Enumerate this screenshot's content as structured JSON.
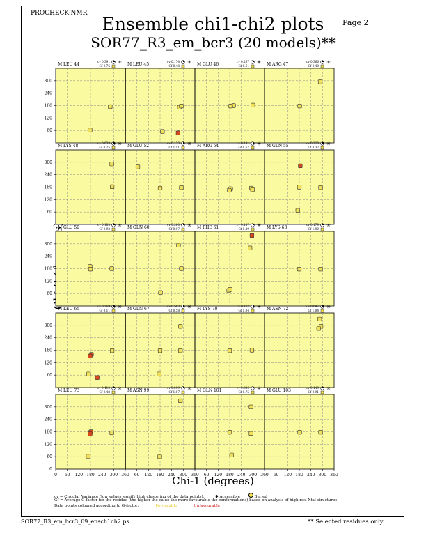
{
  "header_tag": "PROCHECK-NMR",
  "page_label": "Page  2",
  "title": "Ensemble chi1-chi2 plots",
  "subtitle": "SOR77_R3_em_bcr3 (20 models)**",
  "ylabel": "Chi-2 (degrees)",
  "xlabel": "Chi-1 (degrees)",
  "legend": {
    "line1": "cv = Circular Variance (low values signify high clustering of the data points).",
    "accessible": "Accessible",
    "buried": "Buried",
    "line2": "Gf = Average G-factor for the residue (the higher the value the more favourable the conformations) based on analysis of high-res. Xtal structures",
    "line3": "Data points coloured according to G-factor:",
    "favourable": "Favourable",
    "unfavourable": "Unfavourable"
  },
  "footer_left": "SOR77_R3_em_bcr3_09_ensch1ch2.ps",
  "footer_right": "** Selected residues only",
  "colors": {
    "panel_bg": "#fafaa0",
    "point": "#f0e05a",
    "point_bad": "#d84a1a",
    "grid": "#888888",
    "unfavourable_text": "#d02020",
    "favourable_text": "#e8c820"
  },
  "chart_data": {
    "type": "scatter",
    "xlim": [
      0,
      360
    ],
    "ylim": [
      0,
      360
    ],
    "x_ticks": [
      "0",
      "60",
      "120",
      "180",
      "240",
      "300",
      "360"
    ],
    "x_ticks_bottom": [
      "0",
      "60",
      "120",
      "180",
      "240",
      "300",
      "360"
    ],
    "y_ticks": [
      "60",
      "120",
      "180",
      "240",
      "300"
    ],
    "bottom_axis_labels": [
      "0",
      "60",
      "120",
      "180",
      "240",
      "300",
      "360",
      "60",
      "120",
      "180",
      "240",
      "300",
      "360",
      "60",
      "120",
      "180",
      "240",
      "300",
      "360",
      "60",
      "120",
      "180",
      "240",
      "300",
      "360"
    ],
    "bottom_y_ticks": [
      "0",
      "60",
      "120",
      "180",
      "240",
      "300"
    ],
    "grid": true,
    "rows": [
      {
        "panels": [
          {
            "residue": "M LEU 44",
            "cv": "cv 0.391",
            "gf": "Gf 0.75",
            "points": [
              [
                178,
                62
              ],
              [
                282,
                175
              ]
            ],
            "bad": []
          },
          {
            "residue": "M LEU 45",
            "cv": "cv 0.174",
            "gf": "Gf 0.48",
            "points": [
              [
                280,
                172
              ],
              [
                290,
                178
              ],
              [
                192,
                55
              ]
            ],
            "bad": [
              [
                273,
                48
              ]
            ]
          },
          {
            "residue": "M GLU 46",
            "cv": "cv 0.267",
            "gf": "Gf 0.61",
            "points": [
              [
                200,
                180
              ],
              [
                300,
                182
              ],
              [
                185,
                178
              ]
            ],
            "bad": []
          },
          {
            "residue": "M ARG 47",
            "cv": "cv 0.366",
            "gf": "Gf 0.40",
            "points": [
              [
                288,
                295
              ],
              [
                182,
                178
              ]
            ],
            "bad": []
          }
        ]
      },
      {
        "panels": [
          {
            "residue": "M LYS 48",
            "cv": "cv 0.033",
            "gf": "Gf 0.25",
            "points": [
              [
                290,
                292
              ],
              [
                292,
                182
              ]
            ],
            "bad": []
          },
          {
            "residue": "M GLU 52",
            "cv": "cv 0.133",
            "gf": "Gf 1.11",
            "points": [
              [
                65,
                278
              ],
              [
                180,
                175
              ],
              [
                290,
                178
              ]
            ],
            "bad": []
          },
          {
            "residue": "M ARG 54",
            "cv": "cv 0.131",
            "gf": "Gf 0.67",
            "points": [
              [
                185,
                172
              ],
              [
                178,
                165
              ],
              [
                292,
                175
              ],
              [
                298,
                168
              ]
            ],
            "bad": []
          },
          {
            "residue": "M GLN 55",
            "cv": "cv 0.220",
            "gf": "Gf 0.32",
            "points": [
              [
                180,
                180
              ],
              [
                290,
                178
              ],
              [
                172,
                68
              ]
            ],
            "bad": [
              [
                185,
                283
              ]
            ]
          }
        ]
      },
      {
        "panels": [
          {
            "residue": "M GLU 59",
            "cv": "cv 0.183",
            "gf": "Gf 0.93",
            "points": [
              [
                178,
                190
              ],
              [
                180,
                178
              ],
              [
                290,
                180
              ]
            ],
            "bad": []
          },
          {
            "residue": "M GLN 60",
            "cv": "cv 0.260",
            "gf": "Gf 0.97",
            "points": [
              [
                275,
                293
              ],
              [
                290,
                180
              ],
              [
                182,
                65
              ]
            ],
            "bad": []
          },
          {
            "residue": "M PHE 61",
            "cv": "cv 0.187",
            "gf": "Gf 0.49",
            "points": [
              [
                285,
                280
              ],
              [
                175,
                75
              ],
              [
                182,
                80
              ]
            ],
            "bad": [
              [
                295,
                340
              ]
            ]
          },
          {
            "residue": "M LYS 63",
            "cv": "cv 0.179",
            "gf": "Gf 1.00",
            "points": [
              [
                180,
                178
              ],
              [
                290,
                178
              ]
            ],
            "bad": []
          }
        ]
      },
      {
        "panels": [
          {
            "residue": "M LEU 65",
            "cv": "cv 0.369",
            "gf": "Gf 0.11",
            "points": [
              [
                292,
                178
              ],
              [
                170,
                65
              ]
            ],
            "bad": [
              [
                185,
                160
              ],
              [
                215,
                48
              ],
              [
                178,
                152
              ]
            ]
          },
          {
            "residue": "M GLN 67",
            "cv": "cv 0.543",
            "gf": "Gf 0.58",
            "points": [
              [
                285,
                295
              ],
              [
                180,
                178
              ],
              [
                285,
                178
              ],
              [
                175,
                65
              ]
            ],
            "bad": []
          },
          {
            "residue": "M LYS 70",
            "cv": "cv 0.177",
            "gf": "Gf 1.04",
            "points": [
              [
                180,
                178
              ],
              [
                295,
                180
              ]
            ],
            "bad": []
          },
          {
            "residue": "M ASN 72",
            "cv": "cv 0.047",
            "gf": "Gf 1.04",
            "points": [
              [
                285,
                330
              ],
              [
                292,
                295
              ],
              [
                280,
                285
              ]
            ],
            "bad": []
          }
        ]
      },
      {
        "panels": [
          {
            "residue": "M LEU 73",
            "cv": "cv 0.412",
            "gf": "Gf 0.48",
            "points": [
              [
                290,
                175
              ],
              [
                168,
                62
              ]
            ],
            "bad": [
              [
                182,
                180
              ],
              [
                178,
                170
              ]
            ]
          },
          {
            "residue": "M ASN 99",
            "cv": "cv 0.099",
            "gf": "Gf 1.07",
            "points": [
              [
                285,
                330
              ],
              [
                178,
                60
              ]
            ],
            "bad": []
          },
          {
            "residue": "M GLN 101",
            "cv": "cv 0.326",
            "gf": "Gf 0.75",
            "points": [
              [
                290,
                300
              ],
              [
                180,
                178
              ],
              [
                290,
                172
              ],
              [
                190,
                68
              ]
            ],
            "bad": []
          },
          {
            "residue": "M GLU 103",
            "cv": "cv 0.149",
            "gf": "Gf 0.91",
            "points": [
              [
                182,
                178
              ],
              [
                290,
                178
              ]
            ],
            "bad": []
          }
        ]
      }
    ]
  }
}
